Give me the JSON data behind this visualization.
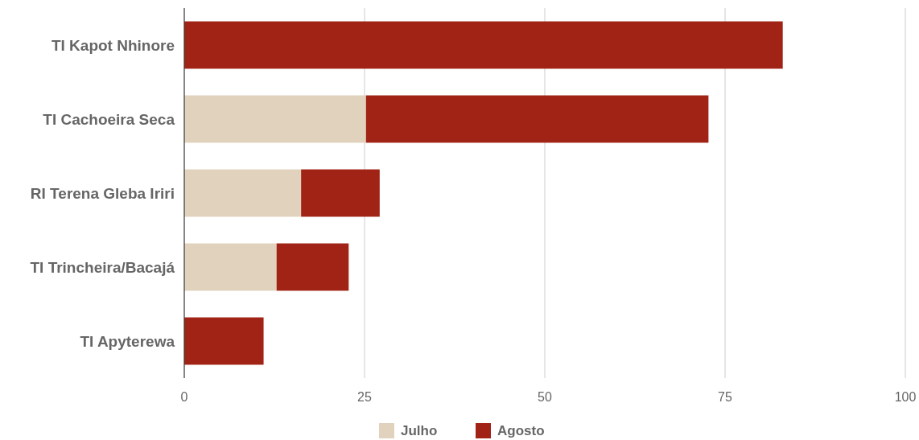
{
  "chart_data": {
    "type": "bar",
    "orientation": "horizontal",
    "stacked": true,
    "categories": [
      "TI Kapot Nhinore",
      "TI Cachoeira Seca",
      "RI Terena Gleba Iriri",
      "TI Trincheira/Bacajá",
      "TI Apyterewa"
    ],
    "series": [
      {
        "name": "Julho",
        "color": "#e0d2bc",
        "values": [
          0,
          25.2,
          16.2,
          12.8,
          0
        ]
      },
      {
        "name": "Agosto",
        "color": "#a12316",
        "values": [
          83,
          47.5,
          10.9,
          10,
          11
        ]
      }
    ],
    "xlim": [
      0,
      100
    ],
    "xticks": [
      0,
      25,
      50,
      75,
      100
    ],
    "grid": "x",
    "legend": "bottom"
  }
}
